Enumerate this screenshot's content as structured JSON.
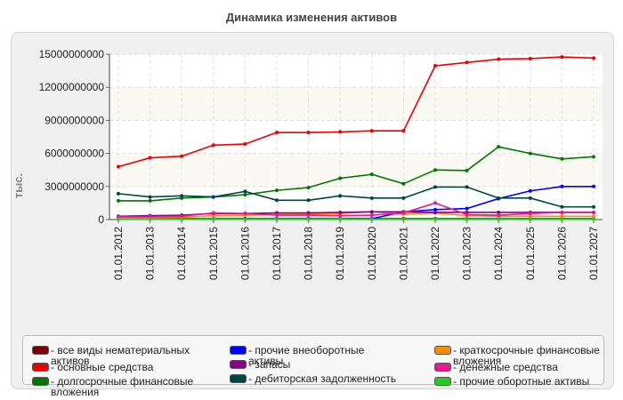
{
  "chart_data": {
    "type": "line",
    "title": "Динамика изменения активов",
    "ylabel": "тыс.",
    "xlabel": "",
    "ylim": [
      0,
      15000000000
    ],
    "yticks": [
      0,
      3000000000,
      6000000000,
      9000000000,
      12000000000,
      15000000000
    ],
    "ytick_labels": [
      "0",
      "3000000000",
      "6000000000",
      "9000000000",
      "12000000000",
      "15000000000"
    ],
    "grid": true,
    "legend_position": "bottom",
    "categories": [
      "01.01.2012",
      "01.01.2013",
      "01.01.2014",
      "01.01.2015",
      "01.01.2016",
      "01.01.2017",
      "01.01.2018",
      "01.01.2019",
      "01.01.2020",
      "01.01.2021",
      "01.01.2022",
      "01.01.2023",
      "01.01.2024",
      "01.01.2025",
      "01.01.2026",
      "01.01.2027"
    ],
    "series": [
      {
        "name": "- все виды нематериальных активов",
        "color": "#7a0000",
        "values": [
          80000000,
          80000000,
          80000000,
          80000000,
          80000000,
          80000000,
          80000000,
          80000000,
          80000000,
          80000000,
          80000000,
          80000000,
          80000000,
          80000000,
          80000000,
          80000000
        ]
      },
      {
        "name": "- прочие внеоборотные активы",
        "color": "#0000ff",
        "values": [
          60000000,
          60000000,
          60000000,
          60000000,
          60000000,
          60000000,
          60000000,
          60000000,
          80000000,
          700000000,
          900000000,
          1000000000,
          1900000000,
          2600000000,
          3000000000,
          3000000000
        ]
      },
      {
        "name": "- краткосрочные финансовые вложения",
        "color": "#ff8c00",
        "values": [
          150000000,
          150000000,
          200000000,
          350000000,
          400000000,
          450000000,
          500000000,
          550000000,
          700000000,
          500000000,
          600000000,
          350000000,
          300000000,
          300000000,
          300000000,
          300000000
        ]
      },
      {
        "name": "- основные средства",
        "color": "#ee0000",
        "values": [
          4800000000,
          5600000000,
          5750000000,
          6750000000,
          6850000000,
          7900000000,
          7900000000,
          7950000000,
          8050000000,
          8050000000,
          13950000000,
          14250000000,
          14550000000,
          14600000000,
          14750000000,
          14650000000
        ]
      },
      {
        "name": "- запасы",
        "color": "#880088",
        "values": [
          300000000,
          350000000,
          400000000,
          550000000,
          550000000,
          600000000,
          600000000,
          650000000,
          700000000,
          700000000,
          650000000,
          650000000,
          650000000,
          650000000,
          650000000,
          650000000
        ]
      },
      {
        "name": "- денежные средства",
        "color": "#ee1493",
        "values": [
          250000000,
          250000000,
          300000000,
          600000000,
          550000000,
          400000000,
          400000000,
          350000000,
          400000000,
          600000000,
          1500000000,
          450000000,
          400000000,
          550000000,
          650000000,
          650000000
        ]
      },
      {
        "name": "- долгосрочные финансовые вложения",
        "color": "#007700",
        "values": [
          1700000000,
          1700000000,
          1950000000,
          2050000000,
          2250000000,
          2650000000,
          2900000000,
          3750000000,
          4100000000,
          3250000000,
          4500000000,
          4450000000,
          6600000000,
          6000000000,
          5500000000,
          5700000000
        ]
      },
      {
        "name": "- дебиторская задолженность",
        "color": "#004444",
        "values": [
          2350000000,
          2050000000,
          2150000000,
          2050000000,
          2550000000,
          1750000000,
          1750000000,
          2150000000,
          1950000000,
          1950000000,
          2950000000,
          2950000000,
          1950000000,
          1950000000,
          1150000000,
          1150000000
        ]
      },
      {
        "name": "- прочие оборотные активы",
        "color": "#22cc22",
        "values": [
          30000000,
          30000000,
          30000000,
          30000000,
          30000000,
          30000000,
          30000000,
          30000000,
          30000000,
          30000000,
          30000000,
          30000000,
          30000000,
          30000000,
          30000000,
          30000000
        ]
      }
    ]
  }
}
